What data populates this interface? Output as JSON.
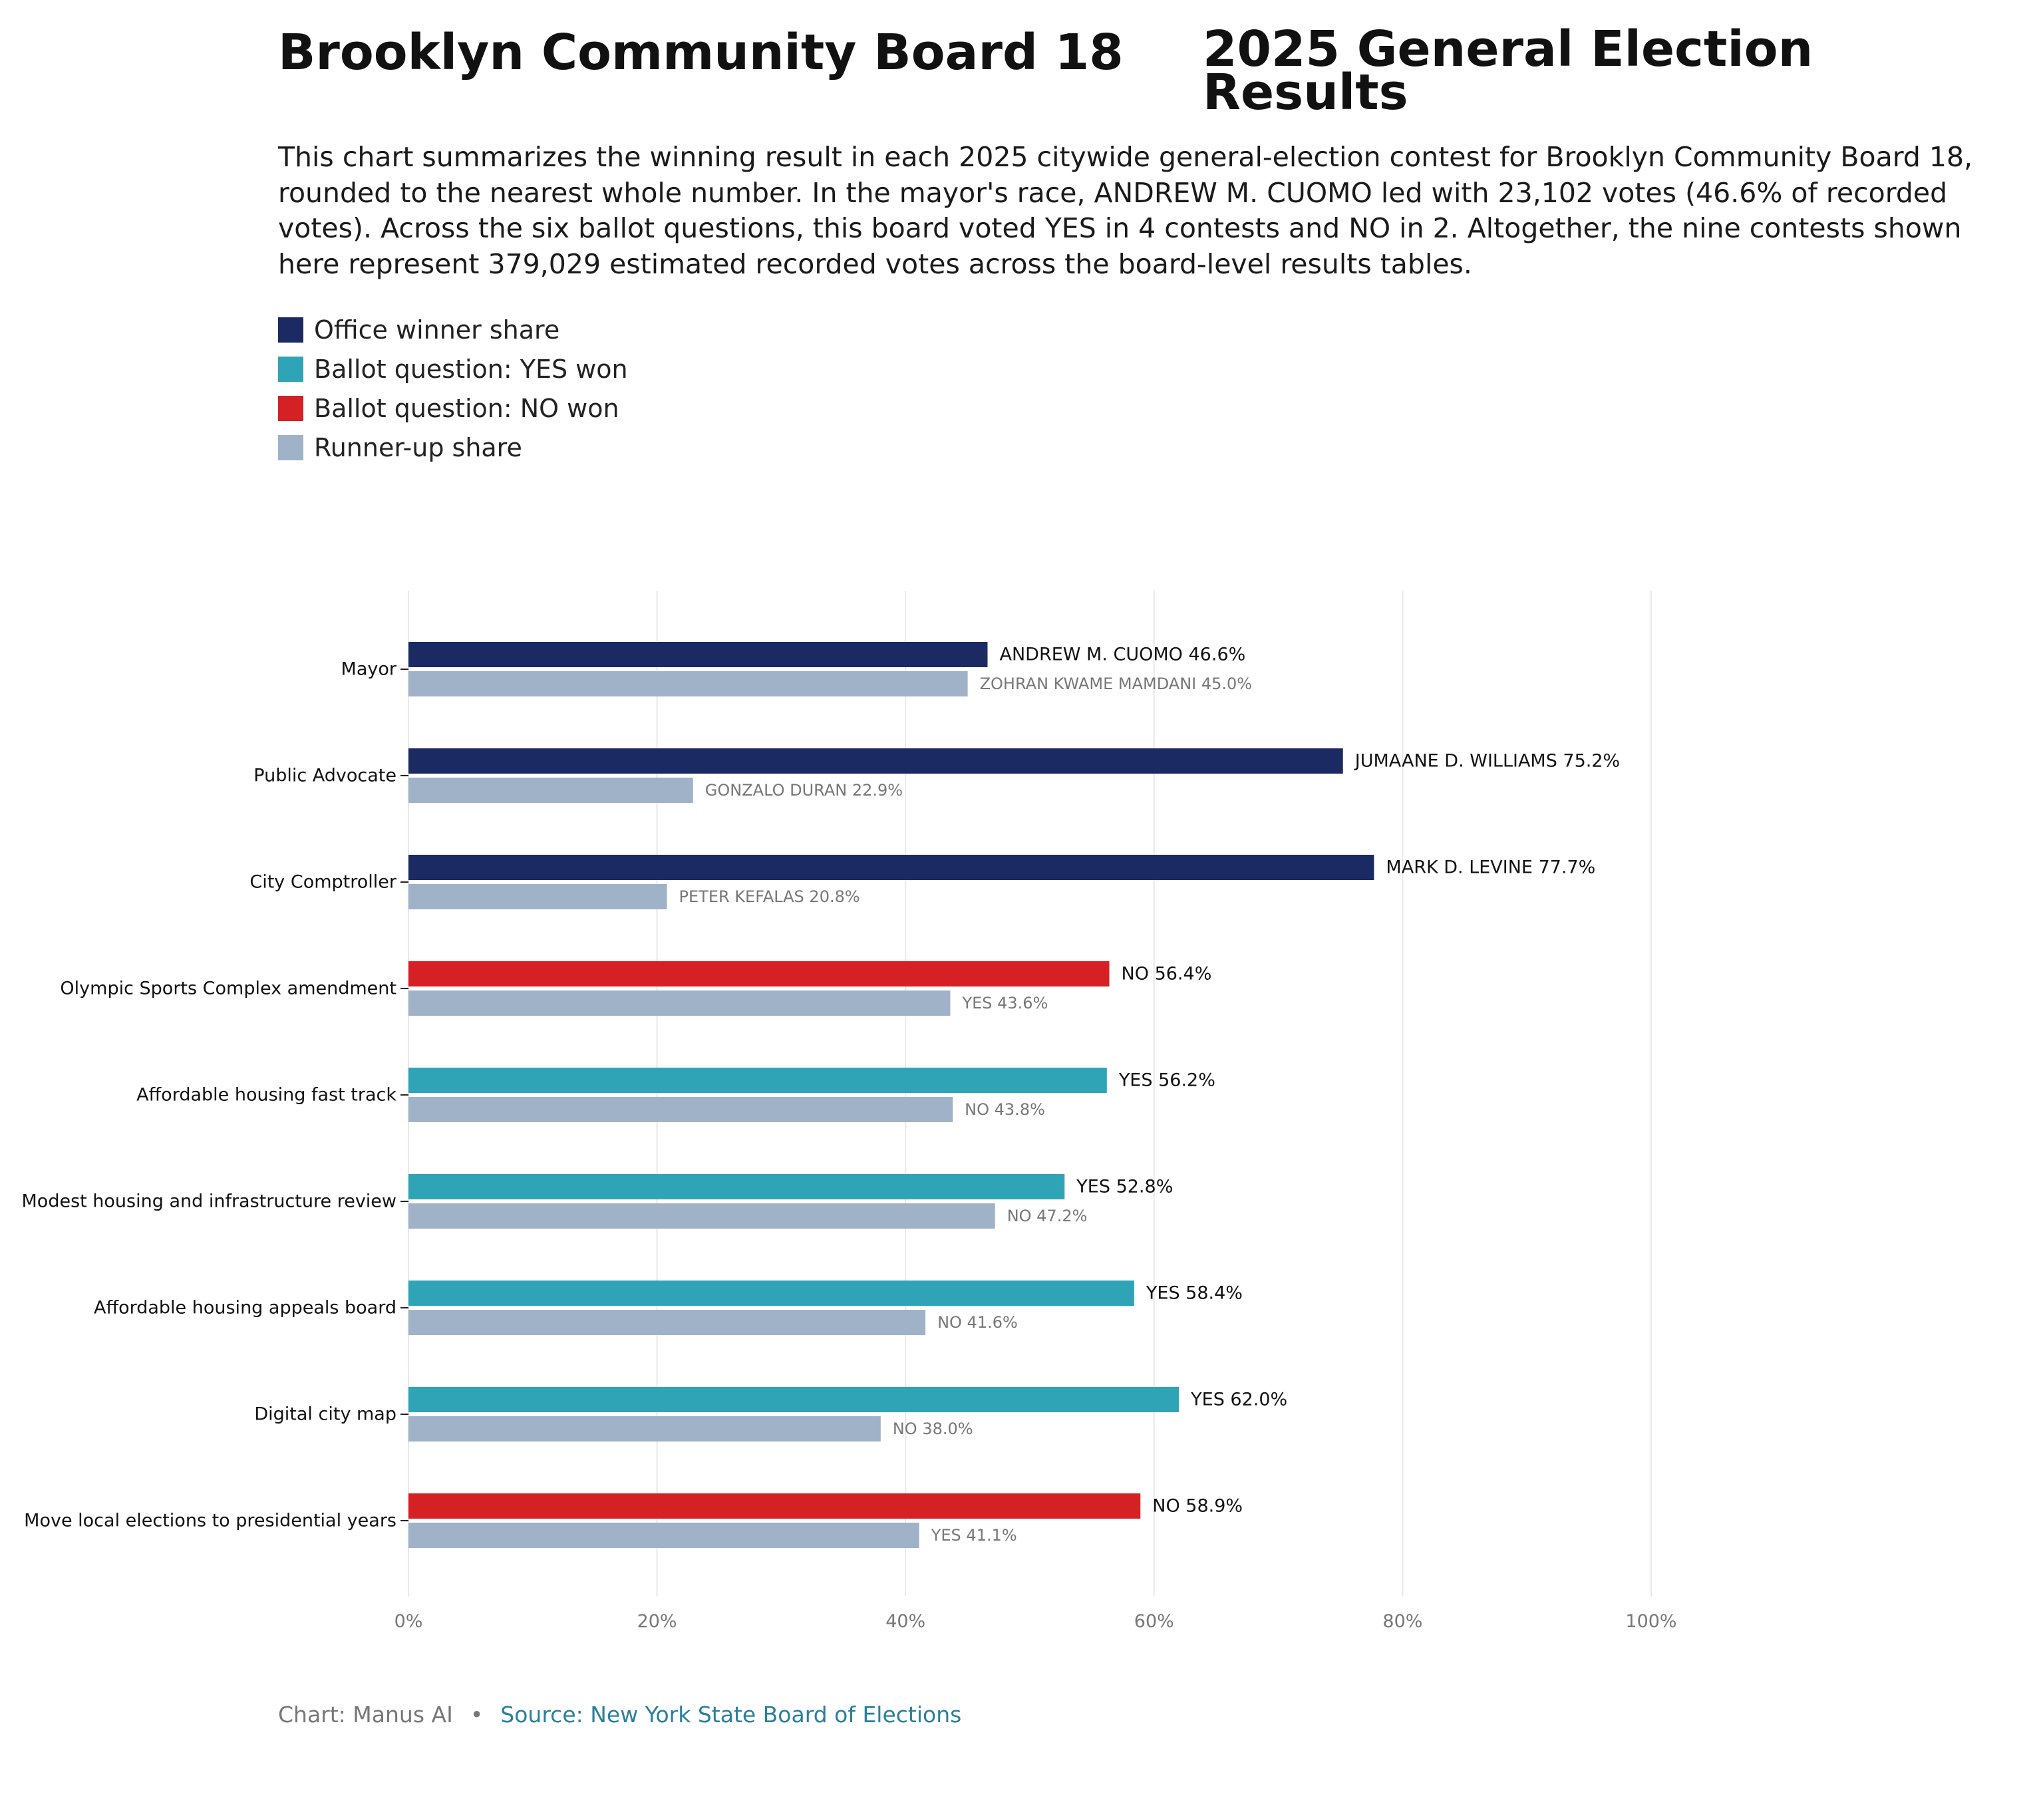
{
  "chart_data": {
    "type": "bar",
    "orientation": "horizontal",
    "title_left": "Brooklyn Community Board 18",
    "title_right": "2025 General Election Results",
    "subtitle": "This chart summarizes the winning result in each 2025 citywide general-election contest for Brooklyn Community Board 18, rounded to the nearest whole number. In the mayor's race, ANDREW M. CUOMO led with 23,102 votes (46.6% of recorded votes). Across the six ballot questions, this board voted YES in 4 contests and NO in 2. Altogether, the nine contests shown here represent 379,029 estimated recorded votes across the board-level results tables.",
    "xlim": [
      0,
      100
    ],
    "x_ticks": [
      "0%",
      "20%",
      "40%",
      "60%",
      "80%",
      "100%"
    ],
    "grid": "vertical",
    "legend": [
      {
        "label": "Office winner share",
        "color": "#1b2a62"
      },
      {
        "label": "Ballot question: YES won",
        "color": "#2fa4b7"
      },
      {
        "label": "Ballot question: NO won",
        "color": "#d62124"
      },
      {
        "label": "Runner-up share",
        "color": "#a0b2c7"
      }
    ],
    "contests": [
      {
        "contest": "Mayor",
        "kind": "office",
        "winner_value": 46.6,
        "winner_label": "ANDREW M. CUOMO 46.6%",
        "runner_value": 45.0,
        "runner_label": "ZOHRAN KWAME MAMDANI 45.0%"
      },
      {
        "contest": "Public Advocate",
        "kind": "office",
        "winner_value": 75.2,
        "winner_label": "JUMAANE D. WILLIAMS 75.2%",
        "runner_value": 22.9,
        "runner_label": "GONZALO DURAN 22.9%"
      },
      {
        "contest": "City Comptroller",
        "kind": "office",
        "winner_value": 77.7,
        "winner_label": "MARK D. LEVINE 77.7%",
        "runner_value": 20.8,
        "runner_label": "PETER KEFALAS 20.8%"
      },
      {
        "contest": "Olympic Sports Complex amendment",
        "kind": "no",
        "winner_value": 56.4,
        "winner_label": "NO 56.4%",
        "runner_value": 43.6,
        "runner_label": "YES 43.6%"
      },
      {
        "contest": "Affordable housing fast track",
        "kind": "yes",
        "winner_value": 56.2,
        "winner_label": "YES 56.2%",
        "runner_value": 43.8,
        "runner_label": "NO 43.8%"
      },
      {
        "contest": "Modest housing and infrastructure review",
        "kind": "yes",
        "winner_value": 52.8,
        "winner_label": "YES 52.8%",
        "runner_value": 47.2,
        "runner_label": "NO 47.2%"
      },
      {
        "contest": "Affordable housing appeals board",
        "kind": "yes",
        "winner_value": 58.4,
        "winner_label": "YES 58.4%",
        "runner_value": 41.6,
        "runner_label": "NO 41.6%"
      },
      {
        "contest": "Digital city map",
        "kind": "yes",
        "winner_value": 62.0,
        "winner_label": "YES 62.0%",
        "runner_value": 38.0,
        "runner_label": "NO 38.0%"
      },
      {
        "contest": "Move local elections to presidential years",
        "kind": "no",
        "winner_value": 58.9,
        "winner_label": "NO 58.9%",
        "runner_value": 41.1,
        "runner_label": "YES 41.1%"
      }
    ],
    "colors": {
      "office": "#1b2a62",
      "yes": "#2fa4b7",
      "no": "#d62124",
      "runner": "#a0b2c7"
    }
  },
  "footer": {
    "credit": "Chart: Manus AI",
    "separator": "•",
    "source": "Source: New York State Board of Elections"
  }
}
